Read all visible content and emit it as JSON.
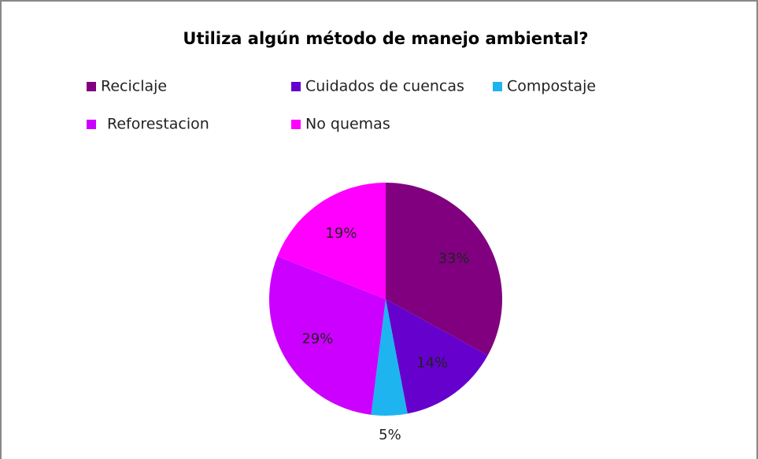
{
  "chart_data": {
    "type": "pie",
    "title": "Utiliza algún método de manejo ambiental?",
    "categories": [
      "Reciclaje",
      "Cuidados de cuencas",
      "Compostaje",
      "Reforestacion",
      "No quemas"
    ],
    "values": [
      33,
      14,
      5,
      29,
      19
    ],
    "value_labels": [
      "33%",
      "14%",
      "5%",
      "29%",
      "19%"
    ],
    "colors": [
      "#800080",
      "#6600cc",
      "#1eb4f0",
      "#cc00ff",
      "#ff00ff"
    ],
    "legend": "top"
  }
}
